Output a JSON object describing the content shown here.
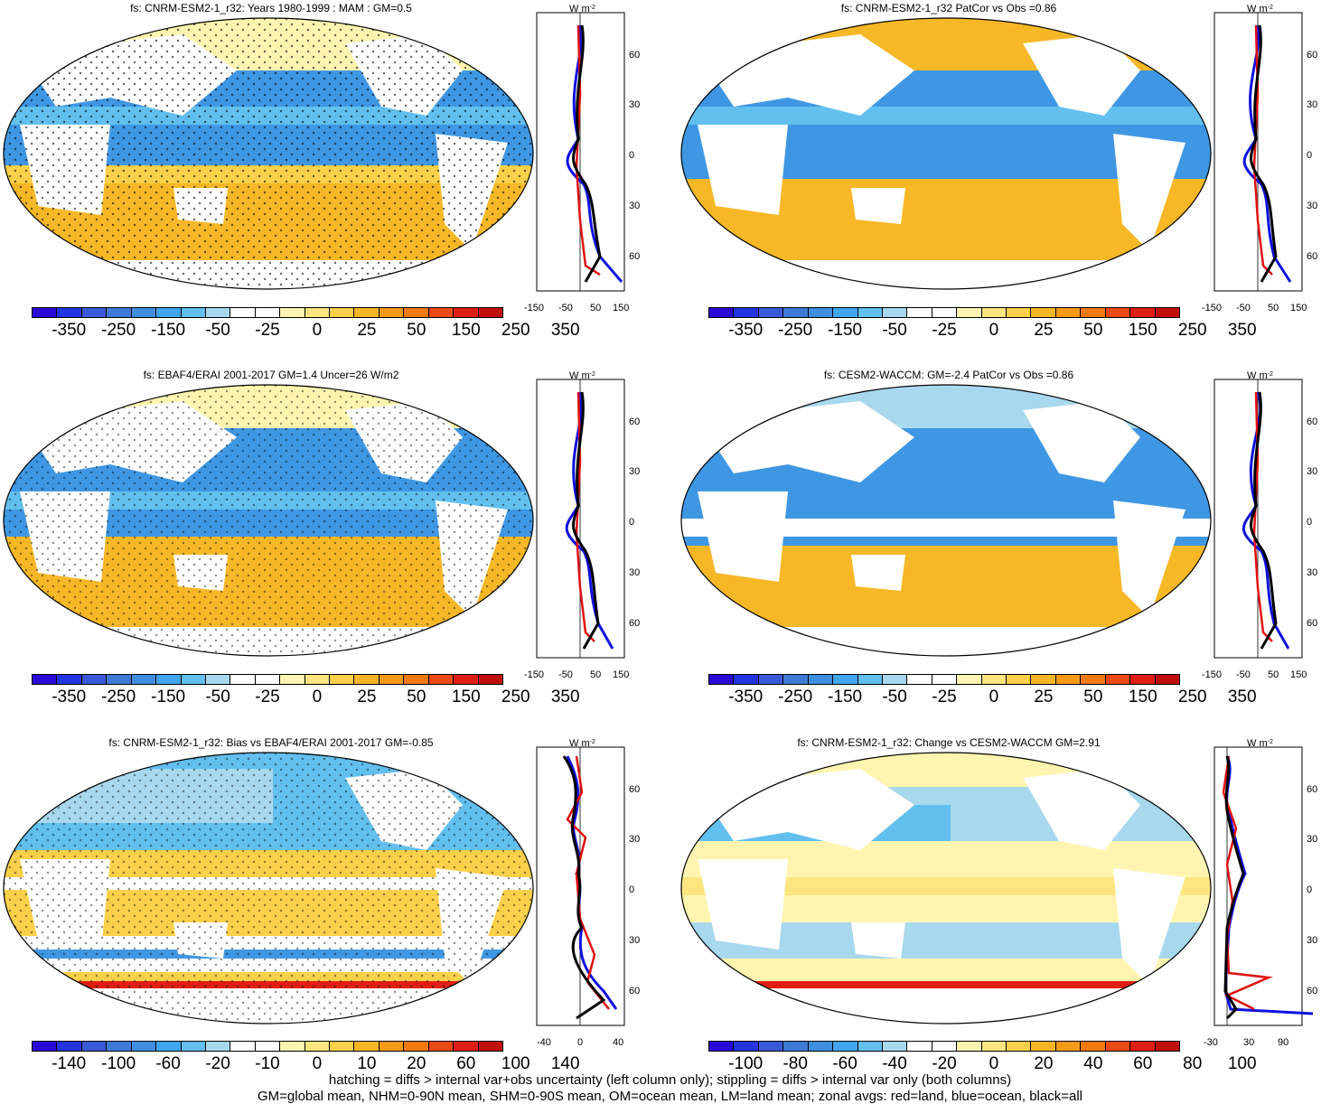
{
  "panels": [
    {
      "title": "fs: CNRM-ESM2-1_r32: Years 1980-1999 : MAM : GM=0.5"
    },
    {
      "title": "fs: CNRM-ESM2-1_r32 PatCor vs Obs =0.86"
    },
    {
      "title": "fs: EBAF4/ERAI 2001-2017 GM=1.4 Uncer=26 W/m2"
    },
    {
      "title": "fs: CESM2-WACCM: GM=-2.4 PatCor vs Obs =0.86"
    },
    {
      "title": "fs: CNRM-ESM2-1_r32: Bias vs EBAF4/ERAI 2001-2017 GM=-0.85"
    },
    {
      "title": "fs: CNRM-ESM2-1_r32: Change vs CESM2-WACCM GM=2.91"
    }
  ],
  "zonal": {
    "units": "W m",
    "units_sup": "-2",
    "lat_labels": [
      "60N",
      "30N",
      "0",
      "30S",
      "60S"
    ],
    "ticks_a": [
      "-150",
      "-50",
      "50",
      "150"
    ],
    "ticks_b": [
      "-40",
      "0",
      "40"
    ],
    "ticks_c": [
      "-30",
      "30",
      "90"
    ]
  },
  "colorbars": {
    "main": {
      "labels": [
        "-350",
        "-250",
        "-150",
        "-50",
        "-25",
        "0",
        "25",
        "50",
        "150",
        "250",
        "350"
      ],
      "colors": [
        "#2a0ad6",
        "#2235e0",
        "#3a5ad8",
        "#3e7bd6",
        "#3f8ee0",
        "#40a6f0",
        "#62bfee",
        "#a8d8ee",
        "#ffffff",
        "#ffffff",
        "#fff5b0",
        "#fde680",
        "#fbd04a",
        "#f8b626",
        "#f69a18",
        "#f27812",
        "#ec4a14",
        "#e01f14",
        "#c0100c"
      ]
    },
    "bias": {
      "labels": [
        "-140",
        "-100",
        "-60",
        "-20",
        "-10",
        "0",
        "10",
        "20",
        "60",
        "100",
        "140"
      ],
      "colors": [
        "#2a0ad6",
        "#2235e0",
        "#3a5ad8",
        "#3e7bd6",
        "#3f8ee0",
        "#40a6f0",
        "#62bfee",
        "#a8d8ee",
        "#ffffff",
        "#ffffff",
        "#fff5b0",
        "#fde680",
        "#fbd04a",
        "#f8b626",
        "#f69a18",
        "#f27812",
        "#ec4a14",
        "#e01f14",
        "#c0100c"
      ]
    },
    "change": {
      "labels": [
        "-100",
        "-80",
        "-60",
        "-40",
        "-20",
        "0",
        "20",
        "40",
        "60",
        "80",
        "100"
      ],
      "colors": [
        "#2a0ad6",
        "#2235e0",
        "#3a5ad8",
        "#3e7bd6",
        "#3f8ee0",
        "#40a6f0",
        "#62bfee",
        "#a8d8ee",
        "#ffffff",
        "#ffffff",
        "#fff5b0",
        "#fde680",
        "#fbd04a",
        "#f8b626",
        "#f69a18",
        "#f27812",
        "#ec4a14",
        "#e01f14",
        "#c0100c"
      ]
    }
  },
  "footnotes": {
    "line1": "hatching = diffs > internal var+obs uncertainty (left column only); stippling = diffs > internal var only (both columns)",
    "line2": "GM=global mean, NHM=0-90N mean, SHM=0-90S mean, OM=ocean mean, LM=land mean; zonal avgs: red=land, blue=ocean, black=all"
  },
  "legend_colors": {
    "land": "#e01010",
    "ocean": "#1010e0",
    "all": "#000000"
  }
}
